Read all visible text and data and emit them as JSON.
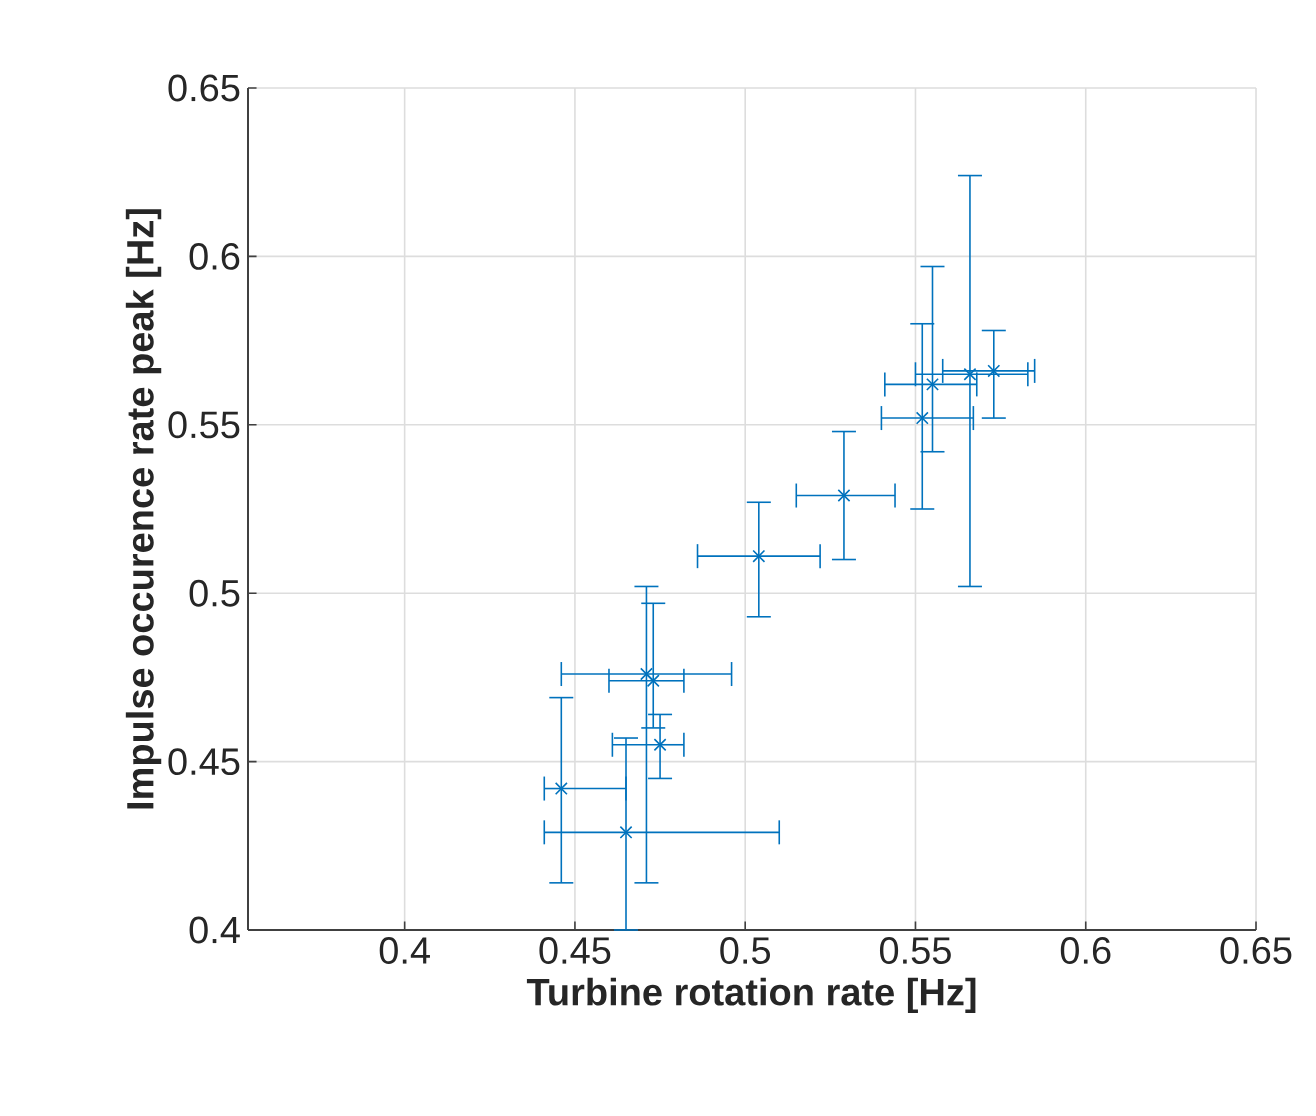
{
  "chart_data": {
    "type": "scatter",
    "xlabel": "Turbine rotation rate [Hz]",
    "ylabel": "Impulse occurence rate peak [Hz]",
    "xlim": [
      0.354,
      0.65
    ],
    "ylim": [
      0.4,
      0.65
    ],
    "xticks": [
      0.4,
      0.45,
      0.5,
      0.55,
      0.6,
      0.65
    ],
    "yticks": [
      0.4,
      0.45,
      0.5,
      0.55,
      0.6,
      0.65
    ],
    "grid": true,
    "marker": "cross",
    "legend": false,
    "series": [
      {
        "color": "#0072bd",
        "x": [
          0.446,
          0.465,
          0.475,
          0.471,
          0.473,
          0.504,
          0.529,
          0.552,
          0.555,
          0.566,
          0.573
        ],
        "values": [
          0.442,
          0.429,
          0.455,
          0.476,
          0.474,
          0.511,
          0.529,
          0.552,
          0.562,
          0.565,
          0.566
        ],
        "xerrors": [
          [
            0.441,
            0.465
          ],
          [
            0.441,
            0.51
          ],
          [
            0.461,
            0.482
          ],
          [
            0.446,
            0.496
          ],
          [
            0.46,
            0.482
          ],
          [
            0.486,
            0.522
          ],
          [
            0.515,
            0.544
          ],
          [
            0.54,
            0.567
          ],
          [
            0.541,
            0.568
          ],
          [
            0.55,
            0.583
          ],
          [
            0.558,
            0.585
          ]
        ],
        "errors": [
          [
            0.414,
            0.469
          ],
          [
            0.4,
            0.457
          ],
          [
            0.445,
            0.464
          ],
          [
            0.414,
            0.502
          ],
          [
            0.46,
            0.497
          ],
          [
            0.493,
            0.527
          ],
          [
            0.51,
            0.548
          ],
          [
            0.525,
            0.58
          ],
          [
            0.542,
            0.597
          ],
          [
            0.502,
            0.624
          ],
          [
            0.552,
            0.578
          ]
        ]
      }
    ]
  }
}
